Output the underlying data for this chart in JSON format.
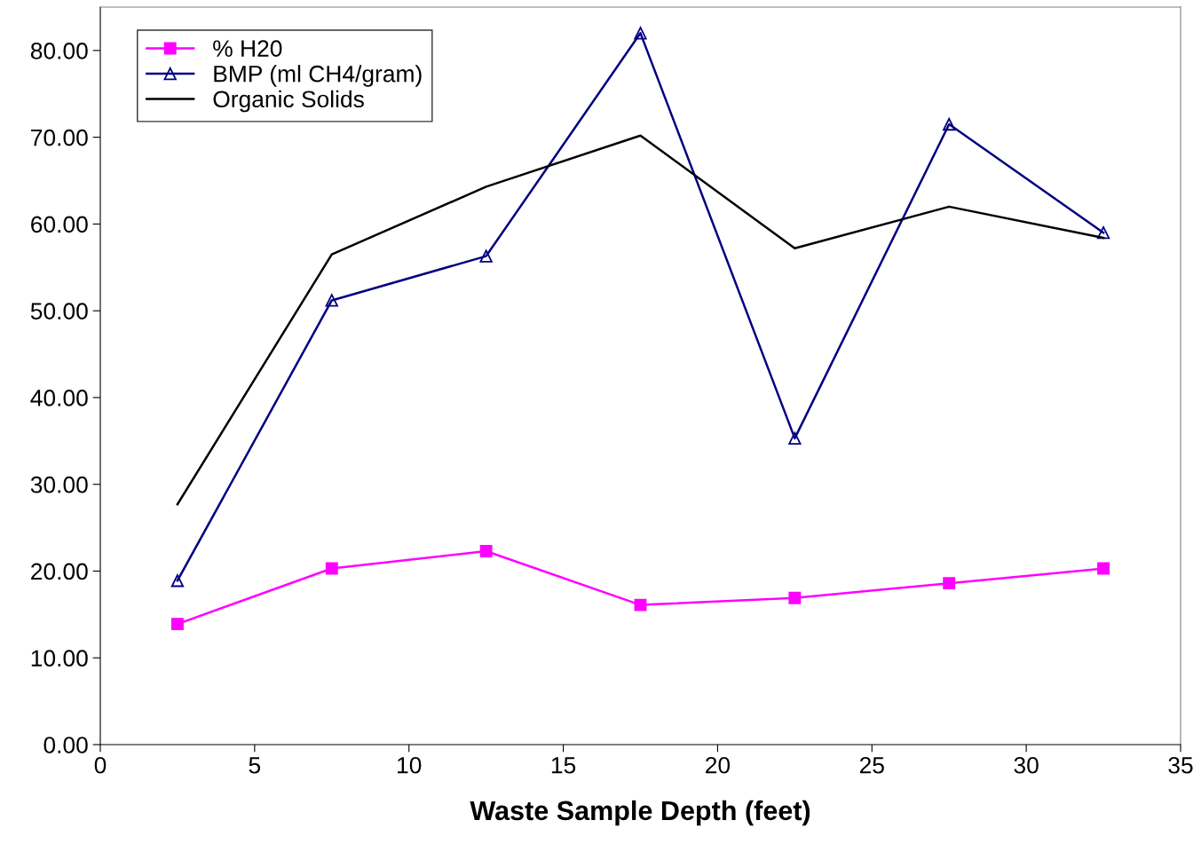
{
  "chart_data": {
    "type": "line",
    "xlabel": "Waste Sample Depth (feet)",
    "x": [
      2.5,
      7.5,
      12.5,
      17.5,
      22.5,
      27.5,
      32.5
    ],
    "series": [
      {
        "name": "% H20",
        "color": "#ff00ff",
        "marker": "square",
        "values": [
          13.9,
          20.3,
          22.3,
          16.1,
          16.9,
          18.6,
          20.3
        ]
      },
      {
        "name": "BMP (ml CH4/gram)",
        "color": "#000080",
        "marker": "triangle",
        "values": [
          18.9,
          51.2,
          56.3,
          82.0,
          35.3,
          71.5,
          59.0
        ]
      },
      {
        "name": "Organic Solids",
        "color": "#000000",
        "marker": "none",
        "values": [
          27.7,
          56.5,
          64.3,
          70.2,
          57.2,
          62.0,
          58.4
        ]
      }
    ],
    "xlim": [
      0,
      35
    ],
    "xticks": [
      0,
      5,
      10,
      15,
      20,
      25,
      30,
      35
    ],
    "ylim": [
      0,
      85
    ],
    "yticks": [
      {
        "value": 0,
        "label": "0.00"
      },
      {
        "value": 10,
        "label": "10.00"
      },
      {
        "value": 20,
        "label": "20.00"
      },
      {
        "value": 30,
        "label": "30.00"
      },
      {
        "value": 40,
        "label": "40.00"
      },
      {
        "value": 50,
        "label": "50.00"
      },
      {
        "value": 60,
        "label": "60.00"
      },
      {
        "value": 70,
        "label": "70.00"
      },
      {
        "value": 80,
        "label": "80.00"
      }
    ],
    "grid": false,
    "legend": "top left",
    "line_style": "solid"
  }
}
